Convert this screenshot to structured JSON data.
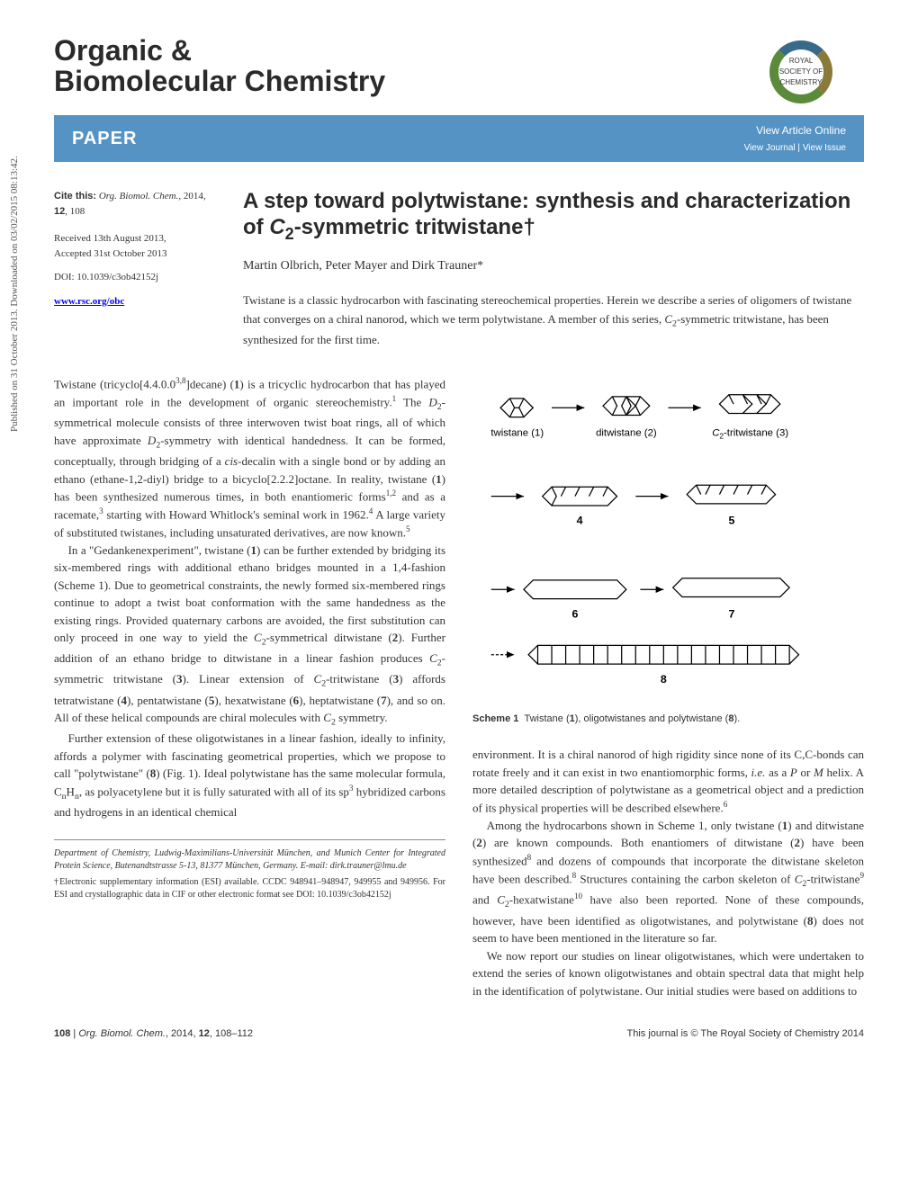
{
  "sidebar": "Published on 31 October 2013. Downloaded on 03/02/2015 08:13:42.",
  "journal": {
    "line1": "Organic &",
    "line2": "Biomolecular Chemistry",
    "logo_text": "ROYAL SOCIETY OF CHEMISTRY",
    "logo_colors": [
      "#5a8a3a",
      "#3a6a8a",
      "#8a7a3a"
    ]
  },
  "bar": {
    "label": "PAPER",
    "view_online": "View Article Online",
    "view_journal": "View Journal",
    "view_issue": "View Issue",
    "bg_color": "#5593c4"
  },
  "meta": {
    "cite_label": "Cite this:",
    "cite_journal": "Org. Biomol. Chem.,",
    "cite_year": "2014,",
    "cite_vol": "12",
    "cite_page": ", 108",
    "received": "Received 13th August 2013,",
    "accepted": "Accepted 31st October 2013",
    "doi": "DOI: 10.1039/c3ob42152j",
    "url": "www.rsc.org/obc"
  },
  "article": {
    "title_html": "A step toward polytwistane: synthesis and characterization of <i>C</i><sub>2</sub>-symmetric tritwistane†",
    "authors": "Martin Olbrich, Peter Mayer and Dirk Trauner*",
    "abstract_html": "Twistane is a classic hydrocarbon with fascinating stereochemical properties. Herein we describe a series of oligomers of twistane that converges on a chiral nanorod, which we term polytwistane. A member of this series, <i>C</i><sub>2</sub>-symmetric tritwistane, has been synthesized for the first time."
  },
  "body": {
    "p1_html": "Twistane (tricyclo[4.4.0.0<sup>3,8</sup>]decane) (<b>1</b>) is a tricyclic hydrocarbon that has played an important role in the development of organic stereochemistry.<sup>1</sup> The <i>D</i><sub>2</sub>-symmetrical molecule consists of three interwoven twist boat rings, all of which have approximate <i>D</i><sub>2</sub>-symmetry with identical handedness. It can be formed, conceptually, through bridging of a <i>cis</i>-decalin with a single bond or by adding an ethano (ethane-1,2-diyl) bridge to a bicyclo[2.2.2]octane. In reality, twistane (<b>1</b>) has been synthesized numerous times, in both enantiomeric forms<sup>1,2</sup> and as a racemate,<sup>3</sup> starting with Howard Whitlock's seminal work in 1962.<sup>4</sup> A large variety of substituted twistanes, including unsaturated derivatives, are now known.<sup>5</sup>",
    "p2_html": "In a \"Gedankenexperiment\", twistane (<b>1</b>) can be further extended by bridging its six-membered rings with additional ethano bridges mounted in a 1,4-fashion (Scheme 1). Due to geometrical constraints, the newly formed six-membered rings continue to adopt a twist boat conformation with the same handedness as the existing rings. Provided quaternary carbons are avoided, the first substitution can only proceed in one way to yield the <i>C</i><sub>2</sub>-symmetrical ditwistane (<b>2</b>). Further addition of an ethano bridge to ditwistane in a linear fashion produces <i>C</i><sub>2</sub>-symmetric tritwistane (<b>3</b>). Linear extension of <i>C</i><sub>2</sub>-tritwistane (<b>3</b>) affords tetratwistane (<b>4</b>), pentatwistane (<b>5</b>), hexatwistane (<b>6</b>), heptatwistane (<b>7</b>), and so on. All of these helical compounds are chiral molecules with <i>C</i><sub>2</sub> symmetry.",
    "p3_html": "Further extension of these oligotwistanes in a linear fashion, ideally to infinity, affords a polymer with fascinating geometrical properties, which we propose to call \"polytwistane\" (<b>8</b>) (Fig. 1). Ideal polytwistane has the same molecular formula, C<sub>n</sub>H<sub>n</sub>, as polyacetylene but it is fully saturated with all of its sp<sup>3</sup> hybridized carbons and hydrogens in an identical chemical",
    "p4_html": "environment. It is a chiral nanorod of high rigidity since none of its C,C-bonds can rotate freely and it can exist in two enantiomorphic forms, <i>i.e.</i> as a <i>P</i> or <i>M</i> helix. A more detailed description of polytwistane as a geometrical object and a prediction of its physical properties will be described elsewhere.<sup>6</sup>",
    "p5_html": "Among the hydrocarbons shown in Scheme 1, only twistane (<b>1</b>) and ditwistane (<b>2</b>) are known compounds. Both enantiomers of ditwistane (<b>2</b>) have been synthesized<sup>8</sup> and dozens of compounds that incorporate the ditwistane skeleton have been described.<sup>8</sup> Structures containing the carbon skeleton of <i>C</i><sub>2</sub>-tritwistane<sup>9</sup> and <i>C</i><sub>2</sub>-hexatwistane<sup>10</sup> have also been reported. None of these compounds, however, have been identified as oligotwistanes, and polytwistane (<b>8</b>) does not seem to have been mentioned in the literature so far.",
    "p6_html": "We now report our studies on linear oligotwistanes, which were undertaken to extend the series of known oligotwistanes and obtain spectral data that might help in the identification of polytwistane. Our initial studies were based on additions to"
  },
  "scheme": {
    "caption_html": "<b>Scheme 1</b>&nbsp;&nbsp;Twistane (<b>1</b>), oligotwistanes and polytwistane (<b>8</b>).",
    "labels": {
      "l1": "twistane (1)",
      "l2": "ditwistane (2)",
      "l3_html": "<i>C</i><sub>2</sub>-tritwistane (<b>3</b>)",
      "l4": "4",
      "l5": "5",
      "l6": "6",
      "l7": "7",
      "l8": "8"
    }
  },
  "footnotes": {
    "affiliation_html": "Department of Chemistry, Ludwig-Maximilians-Universität München, and Munich Center for Integrated Protein Science, Butenandtstrasse 5-13, 81377 München, Germany. E-mail: dirk.trauner@lmu.de",
    "esi_html": "†Electronic supplementary information (ESI) available. CCDC 948941–948947, 949955 and 949956. For ESI and crystallographic data in CIF or other electronic format see DOI: 10.1039/c3ob42152j"
  },
  "footer": {
    "left_html": "<b>108</b> | <i>Org. Biomol. Chem.</i>, 2014, <b>12</b>, 108–112",
    "right": "This journal is © The Royal Society of Chemistry 2014"
  },
  "colors": {
    "text": "#333333",
    "bar": "#5593c4",
    "heading": "#2a2a2a"
  }
}
